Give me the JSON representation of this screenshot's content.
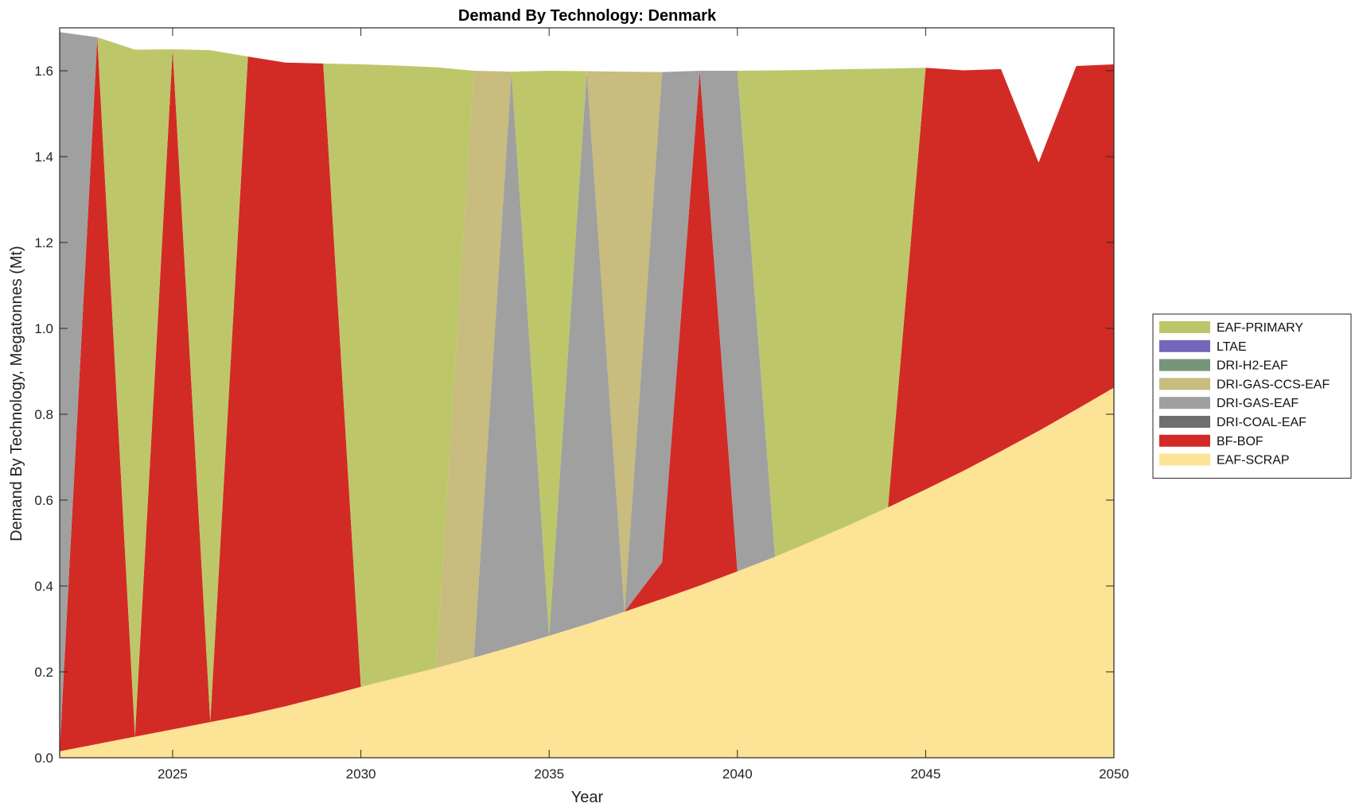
{
  "chart_data": {
    "type": "area",
    "title": "Demand By Technology: Denmark",
    "xlabel": "Year",
    "ylabel": "Demand By Technology, Megatonnes (Mt)",
    "xlim": [
      2022,
      2050
    ],
    "ylim": [
      0,
      1.7
    ],
    "xticks": [
      2025,
      2030,
      2035,
      2040,
      2045,
      2050
    ],
    "yticks": [
      0,
      0.2,
      0.4,
      0.6,
      0.8,
      1.0,
      1.2,
      1.4,
      1.6
    ],
    "ytick_labels": [
      "0.0",
      "0.2",
      "0.4",
      "0.6",
      "0.8",
      "1.0",
      "1.2",
      "1.4",
      "1.6"
    ],
    "legend_position": "right",
    "x": [
      2022,
      2023,
      2024,
      2025,
      2026,
      2027,
      2028,
      2029,
      2030,
      2031,
      2032,
      2033,
      2034,
      2035,
      2036,
      2037,
      2038,
      2039,
      2040,
      2041,
      2042,
      2043,
      2044,
      2045,
      2046,
      2047,
      2048,
      2049,
      2050
    ],
    "series": [
      {
        "name": "EAF-SCRAP",
        "color": "#FDE395",
        "values": [
          0.015,
          0.032,
          0.049,
          0.066,
          0.083,
          0.1,
          0.12,
          0.142,
          0.165,
          0.187,
          0.209,
          0.233,
          0.258,
          0.284,
          0.311,
          0.34,
          0.37,
          0.401,
          0.434,
          0.468,
          0.505,
          0.543,
          0.583,
          0.625,
          0.668,
          0.714,
          0.761,
          0.811,
          0.862
        ]
      },
      {
        "name": "BF-BOF",
        "color": "#D22B25",
        "values": [
          0,
          1.646,
          0,
          1.584,
          0,
          1.533,
          1.499,
          1.475,
          0,
          0,
          0,
          0,
          0,
          0,
          0,
          0,
          0.085,
          1.199,
          0,
          0,
          0,
          0,
          0,
          0.982,
          0.933,
          0.89,
          0.625,
          0.8,
          0.753
        ]
      },
      {
        "name": "DRI-COAL-EAF",
        "color": "#6E6E6E",
        "values": [
          0,
          0,
          0,
          0,
          0,
          0,
          0,
          0,
          0,
          0,
          0,
          0,
          0,
          0,
          0,
          0,
          0,
          0,
          0,
          0,
          0,
          0,
          0,
          0,
          0,
          0,
          0,
          0,
          0
        ]
      },
      {
        "name": "DRI-GAS-EAF",
        "color": "#A0A0A0",
        "values": [
          1.675,
          0,
          0,
          0,
          0,
          0,
          0,
          0,
          0,
          0,
          0,
          0,
          1.34,
          0,
          1.288,
          0,
          1.142,
          0,
          1.166,
          0,
          0,
          0,
          0,
          0,
          0,
          0,
          0,
          0,
          0
        ]
      },
      {
        "name": "DRI-GAS-CCS-EAF",
        "color": "#C8BC7E",
        "values": [
          0,
          0,
          0,
          0,
          0,
          0,
          0,
          0,
          0,
          0,
          0,
          1.367,
          0,
          0,
          0,
          1.258,
          0,
          0,
          0,
          0,
          0,
          0,
          0,
          0,
          0,
          0,
          0,
          0,
          0
        ]
      },
      {
        "name": "DRI-H2-EAF",
        "color": "#76967A",
        "values": [
          0,
          0,
          0,
          0,
          0,
          0,
          0,
          0,
          0,
          0,
          0,
          0,
          0,
          0,
          0,
          0,
          0,
          0,
          0,
          0,
          0,
          0,
          0,
          0,
          0,
          0,
          0,
          0,
          0
        ]
      },
      {
        "name": "LTAE",
        "color": "#7566BA",
        "values": [
          0,
          0,
          0,
          0,
          0,
          0,
          0,
          0,
          0,
          0,
          0,
          0,
          0,
          0,
          0,
          0,
          0,
          0,
          0,
          0,
          0,
          0,
          0,
          0,
          0,
          0,
          0,
          0,
          0
        ]
      },
      {
        "name": "EAF-PRIMARY",
        "color": "#BDC76A",
        "values": [
          0,
          0,
          1.6,
          0,
          1.565,
          0,
          0,
          0,
          1.45,
          1.425,
          1.399,
          0,
          0,
          1.316,
          0,
          0,
          0,
          0,
          0,
          1.133,
          1.097,
          1.061,
          1.022,
          0,
          0,
          0,
          0,
          0,
          0
        ]
      }
    ],
    "legend": [
      "EAF-PRIMARY",
      "LTAE",
      "DRI-H2-EAF",
      "DRI-GAS-CCS-EAF",
      "DRI-GAS-EAF",
      "DRI-COAL-EAF",
      "BF-BOF",
      "EAF-SCRAP"
    ]
  }
}
